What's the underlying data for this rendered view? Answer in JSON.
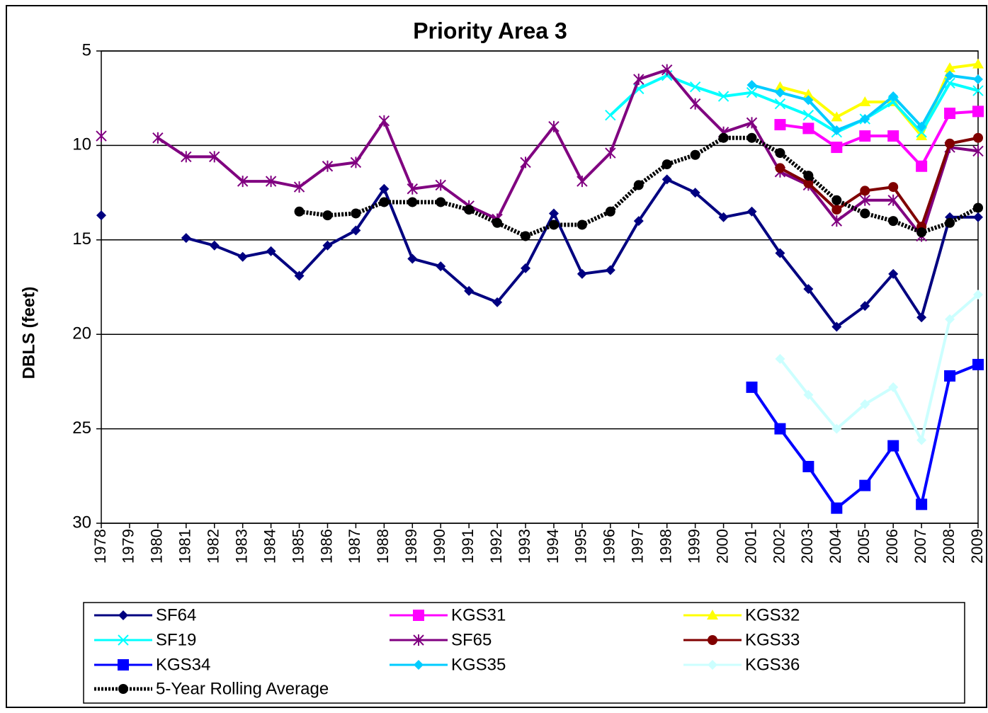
{
  "chart_data": {
    "type": "line",
    "title": "Priority Area 3",
    "y_label": "DBLS (feet)",
    "categories": [
      "1978",
      "1979",
      "1980",
      "1981",
      "1982",
      "1983",
      "1984",
      "1985",
      "1986",
      "1987",
      "1988",
      "1989",
      "1990",
      "1991",
      "1992",
      "1993",
      "1994",
      "1995",
      "1996",
      "1997",
      "1998",
      "1999",
      "2000",
      "2001",
      "2002",
      "2003",
      "2004",
      "2005",
      "2006",
      "2007",
      "2008",
      "2009"
    ],
    "ylim": [
      5,
      30
    ],
    "yticks": [
      5,
      10,
      15,
      20,
      25,
      30
    ],
    "y_inverted": true,
    "grid": true,
    "legend": "bottom",
    "series": [
      {
        "name": "SF64",
        "color": "#000080",
        "marker": "diamond",
        "values": [
          13.7,
          null,
          null,
          14.9,
          15.3,
          15.9,
          15.6,
          16.9,
          15.3,
          14.5,
          12.3,
          16.0,
          16.4,
          17.7,
          18.3,
          16.5,
          13.6,
          16.8,
          16.6,
          14.0,
          11.8,
          12.5,
          13.8,
          13.5,
          15.7,
          17.6,
          19.6,
          18.5,
          16.8,
          19.1,
          13.8,
          13.8
        ]
      },
      {
        "name": "KGS31",
        "color": "#ff00ff",
        "marker": "square",
        "values": [
          null,
          null,
          null,
          null,
          null,
          null,
          null,
          null,
          null,
          null,
          null,
          null,
          null,
          null,
          null,
          null,
          null,
          null,
          null,
          null,
          null,
          null,
          null,
          null,
          8.9,
          9.1,
          10.1,
          9.5,
          9.5,
          11.1,
          8.3,
          8.2
        ]
      },
      {
        "name": "KGS32",
        "color": "#ffff00",
        "marker": "triangle",
        "values": [
          null,
          null,
          null,
          null,
          null,
          null,
          null,
          null,
          null,
          null,
          null,
          null,
          null,
          null,
          null,
          null,
          null,
          null,
          null,
          null,
          null,
          null,
          null,
          null,
          6.9,
          7.3,
          8.5,
          7.7,
          7.7,
          9.5,
          5.9,
          5.7
        ]
      },
      {
        "name": "SF19",
        "color": "#00ffff",
        "marker": "x",
        "values": [
          null,
          null,
          null,
          null,
          null,
          null,
          null,
          null,
          null,
          null,
          null,
          null,
          null,
          null,
          null,
          null,
          null,
          null,
          8.4,
          7.0,
          6.3,
          6.9,
          7.4,
          7.2,
          7.8,
          8.4,
          9.3,
          8.6,
          7.7,
          9.3,
          6.7,
          7.1
        ]
      },
      {
        "name": "SF65",
        "color": "#800080",
        "marker": "star",
        "values": [
          9.5,
          null,
          9.6,
          10.6,
          10.6,
          11.9,
          11.9,
          12.2,
          11.1,
          10.9,
          8.7,
          12.3,
          12.1,
          13.2,
          13.9,
          10.9,
          9.0,
          11.9,
          10.4,
          6.5,
          6.0,
          7.8,
          9.3,
          8.8,
          11.4,
          12.1,
          14.0,
          12.9,
          12.9,
          14.8,
          10.1,
          10.3
        ]
      },
      {
        "name": "KGS33",
        "color": "#800000",
        "marker": "circle",
        "values": [
          null,
          null,
          null,
          null,
          null,
          null,
          null,
          null,
          null,
          null,
          null,
          null,
          null,
          null,
          null,
          null,
          null,
          null,
          null,
          null,
          null,
          null,
          null,
          null,
          11.2,
          12.0,
          13.4,
          12.4,
          12.2,
          14.3,
          9.9,
          9.6
        ]
      },
      {
        "name": "KGS34",
        "color": "#0000ff",
        "marker": "square",
        "values": [
          null,
          null,
          null,
          null,
          null,
          null,
          null,
          null,
          null,
          null,
          null,
          null,
          null,
          null,
          null,
          null,
          null,
          null,
          null,
          null,
          null,
          null,
          null,
          22.8,
          25.0,
          27.0,
          29.2,
          28.0,
          25.9,
          29.0,
          22.2,
          21.6
        ]
      },
      {
        "name": "KGS35",
        "color": "#00ccff",
        "marker": "diamond",
        "values": [
          null,
          null,
          null,
          null,
          null,
          null,
          null,
          null,
          null,
          null,
          null,
          null,
          null,
          null,
          null,
          null,
          null,
          null,
          null,
          null,
          null,
          null,
          null,
          6.8,
          7.2,
          7.6,
          9.2,
          8.6,
          7.4,
          9.0,
          6.3,
          6.5
        ]
      },
      {
        "name": "KGS36",
        "color": "#ccffff",
        "marker": "diamond",
        "values": [
          null,
          null,
          null,
          null,
          null,
          null,
          null,
          null,
          null,
          null,
          null,
          null,
          null,
          null,
          null,
          null,
          null,
          null,
          null,
          null,
          null,
          null,
          null,
          null,
          21.3,
          23.2,
          25.0,
          23.7,
          22.8,
          25.6,
          19.2,
          17.9
        ]
      },
      {
        "name": "5-Year Rolling  Average",
        "color": "#000000",
        "marker": "circle",
        "dashed": true,
        "values": [
          null,
          null,
          null,
          null,
          null,
          null,
          null,
          13.5,
          13.7,
          13.6,
          13.0,
          13.0,
          13.0,
          13.4,
          14.1,
          14.8,
          14.2,
          14.2,
          13.5,
          12.1,
          11.0,
          10.5,
          9.6,
          9.6,
          10.4,
          11.6,
          12.9,
          13.6,
          14.0,
          14.6,
          14.1,
          13.3
        ]
      }
    ]
  }
}
